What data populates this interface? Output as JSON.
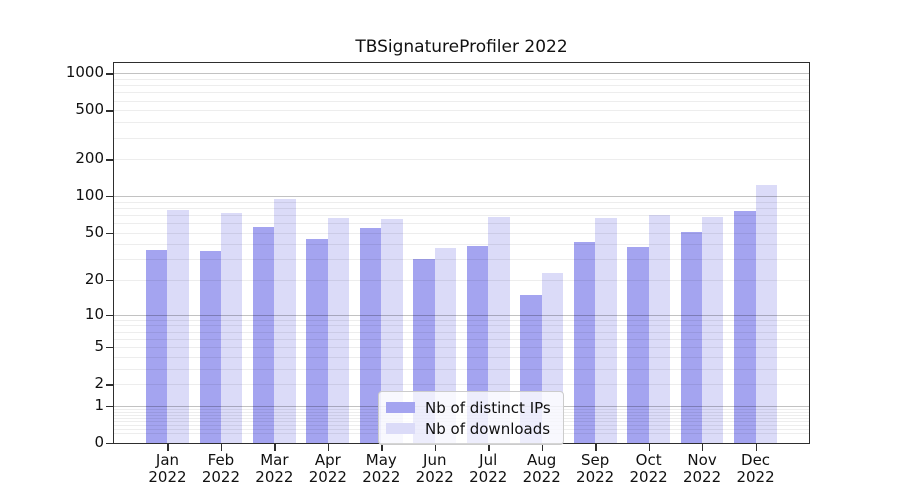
{
  "chart_data": {
    "type": "bar",
    "title": "TBSignatureProfiler 2022",
    "categories": [
      "Jan",
      "Feb",
      "Mar",
      "Apr",
      "May",
      "Jun",
      "Jul",
      "Aug",
      "Sep",
      "Oct",
      "Nov",
      "Dec"
    ],
    "year_label": "2022",
    "series": [
      {
        "name": "Nb of distinct IPs",
        "color": "#a4a4f0",
        "values": [
          36,
          35,
          56,
          44,
          55,
          30,
          39,
          15,
          42,
          38,
          51,
          75
        ]
      },
      {
        "name": "Nb of downloads",
        "color": "#dbdbf8",
        "values": [
          76,
          73,
          95,
          66,
          65,
          37,
          67,
          23,
          66,
          70,
          67,
          124
        ]
      }
    ],
    "yscale": "log1p",
    "yticks": [
      0,
      1,
      2,
      5,
      10,
      20,
      50,
      100,
      200,
      500,
      1000
    ],
    "ylim": [
      0,
      1210
    ],
    "xlabel": "",
    "ylabel": "",
    "grid": true,
    "legend_position": "lower center"
  },
  "colors": {
    "bar_distinct_ips": "#a4a4f0",
    "bar_downloads": "#dbdbf8",
    "major_grid": "rgba(0,0,0,0.24)",
    "minor_grid": "rgba(0,0,0,0.07)",
    "spine": "#2e2e2e",
    "text": "#111111",
    "legend_bg": "rgba(255,255,255,0.8)",
    "legend_border": "#cccccc"
  }
}
